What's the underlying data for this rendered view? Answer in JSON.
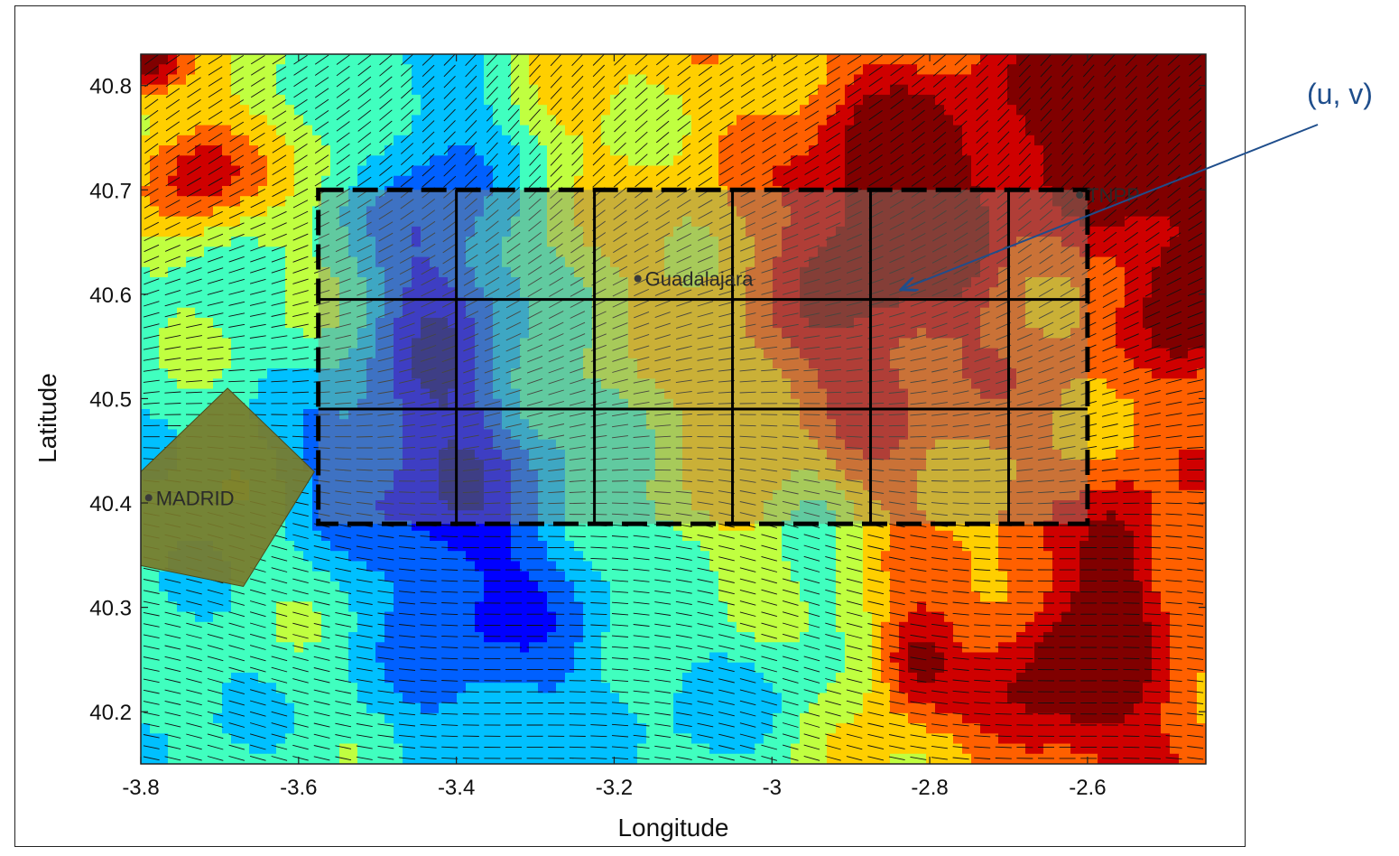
{
  "chart_data": {
    "type": "heatmap",
    "title": "",
    "xlabel": "Longitude",
    "ylabel": "Latitude",
    "xlim": [
      -3.8,
      -2.45
    ],
    "ylim": [
      40.15,
      40.83
    ],
    "x_ticks": [
      "-3.8",
      "-3.6",
      "-3.4",
      "-3.2",
      "-3",
      "-2.8",
      "-2.6"
    ],
    "y_ticks": [
      "40.2",
      "40.3",
      "40.4",
      "40.5",
      "40.6",
      "40.7",
      "40.8"
    ],
    "x_tick_values": [
      -3.8,
      -3.6,
      -3.4,
      -3.2,
      -3.0,
      -2.8,
      -2.6
    ],
    "y_tick_values": [
      40.2,
      40.3,
      40.4,
      40.5,
      40.6,
      40.7,
      40.8
    ],
    "grid": false,
    "overlay_wind_vectors": true,
    "study_region": {
      "lon_range": [
        -3.575,
        -2.6
      ],
      "lat_range": [
        40.38,
        40.7
      ],
      "lon_divisions": [
        -3.575,
        -3.4,
        -3.225,
        -3.05,
        -2.875,
        -2.7,
        -2.6
      ],
      "lat_divisions": [
        40.38,
        40.49,
        40.595,
        40.7
      ]
    },
    "places": [
      {
        "name": "Guadalajara",
        "lon": -3.17,
        "lat": 40.615
      },
      {
        "name": "TNPP",
        "lon": -2.61,
        "lat": 40.695
      },
      {
        "name": "MADRID",
        "lon": -3.79,
        "lat": 40.405
      }
    ],
    "colormap": [
      "#00008f",
      "#0000ff",
      "#0060ff",
      "#00c0ff",
      "#40ffbf",
      "#c0ff40",
      "#ffcf00",
      "#ff6000",
      "#cf0000",
      "#800000"
    ],
    "madrid_area_color": "#7a7a2a",
    "region_fill_color": "#8a8a7a"
  },
  "annotation": {
    "label": "(u, v)",
    "color": "#1f4e8c"
  }
}
